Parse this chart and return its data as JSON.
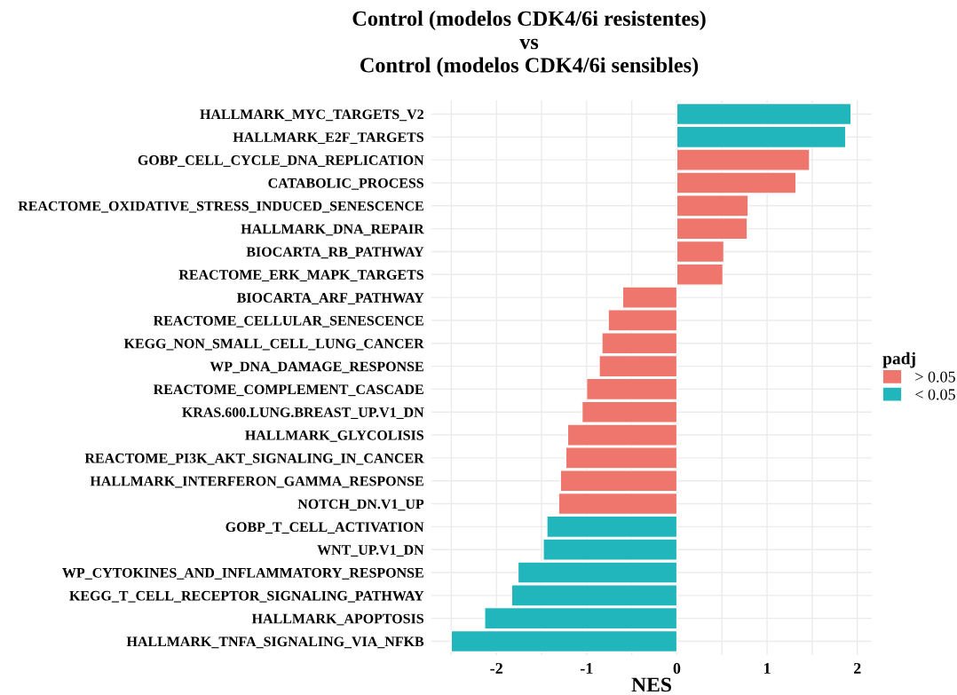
{
  "chart_data": {
    "type": "bar",
    "orientation": "horizontal",
    "title": "Control (modelos CDK4/6i resistentes)\nvs\nControl (modelos CDK4/6i sensibles)",
    "xlabel": "NES",
    "legend_title": "padj",
    "categories": [
      "HALLMARK_MYC_TARGETS_V2",
      "HALLMARK_E2F_TARGETS",
      "GOBP_CELL_CYCLE_DNA_REPLICATION",
      "CATABOLIC_PROCESS",
      "REACTOME_OXIDATIVE_STRESS_INDUCED_SENESCENCE",
      "HALLMARK_DNA_REPAIR",
      "BIOCARTA_RB_PATHWAY",
      "REACTOME_ERK_MAPK_TARGETS",
      "BIOCARTA_ARF_PATHWAY",
      "REACTOME_CELLULAR_SENESCENCE",
      "KEGG_NON_SMALL_CELL_LUNG_CANCER",
      "WP_DNA_DAMAGE_RESPONSE",
      "REACTOME_COMPLEMENT_CASCADE",
      "KRAS.600.LUNG.BREAST_UP.V1_DN",
      "HALLMARK_GLYCOLISIS",
      "REACTOME_PI3K_AKT_SIGNALING_IN_CANCER",
      "HALLMARK_INTERFERON_GAMMA_RESPONSE",
      "NOTCH_DN.V1_UP",
      "GOBP_T_CELL_ACTIVATION",
      "WNT_UP.V1_DN",
      "WP_CYTOKINES_AND_INFLAMMATORY_RESPONSE",
      "KEGG_T_CELL_RECEPTOR_SIGNALING_PATHWAY",
      "HALLMARK_APOPTOSIS",
      "HALLMARK_TNFA_SIGNALING_VIA_NFKB"
    ],
    "series": [
      {
        "name": "> 0.05",
        "color": "#ee766d",
        "values": [
          null,
          null,
          1.47,
          1.32,
          0.79,
          0.78,
          0.52,
          0.51,
          -0.6,
          -0.76,
          -0.83,
          -0.86,
          -1.0,
          -1.05,
          -1.21,
          -1.23,
          -1.29,
          -1.31,
          null,
          null,
          null,
          null,
          null,
          null
        ]
      },
      {
        "name": "< 0.05",
        "color": "#20b6bc",
        "values": [
          1.93,
          1.87,
          null,
          null,
          null,
          null,
          null,
          null,
          null,
          null,
          null,
          null,
          null,
          null,
          null,
          null,
          null,
          null,
          -1.44,
          -1.48,
          -1.76,
          -1.83,
          -2.13,
          -2.5
        ]
      }
    ],
    "xlim": [
      -2.72,
      2.16
    ],
    "xticks": [
      {
        "value": -2.5,
        "label": null
      },
      -2,
      {
        "value": -1.5,
        "label": null
      },
      -1,
      {
        "value": -0.5,
        "label": null
      },
      0,
      {
        "value": 0.5,
        "label": null
      },
      1,
      {
        "value": 1.5,
        "label": null
      },
      2
    ],
    "grid": true,
    "legend": "right"
  }
}
